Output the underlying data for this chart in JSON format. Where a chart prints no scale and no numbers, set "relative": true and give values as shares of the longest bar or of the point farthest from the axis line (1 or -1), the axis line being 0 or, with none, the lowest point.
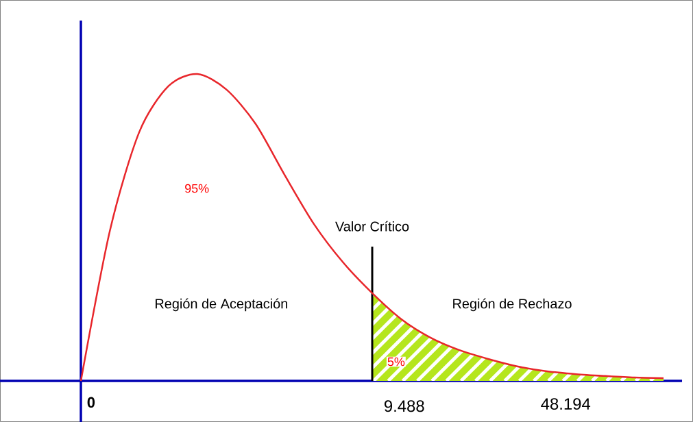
{
  "chart_data": {
    "type": "line",
    "relative": true,
    "categories": [
      null,
      null,
      null,
      null,
      null,
      null,
      null,
      null,
      null,
      null,
      null,
      null,
      null,
      null,
      null,
      null,
      null,
      null,
      null,
      null,
      null
    ],
    "annotations": [
      "95%",
      "Región de Aceptación",
      "Región de Rechazo",
      "5%",
      "0",
      "9.488",
      "48.194",
      "Valor Crítico"
    ],
    "series": [
      {
        "color": "#e8262b",
        "values": [
          0,
          0.491,
          0.81,
          0.96,
          1,
          0.949,
          0.837,
          0.67,
          0.511,
          0.386,
          0.286,
          0.201,
          0.141,
          0.1,
          0.071,
          0.047,
          0.031,
          0.022,
          0.016,
          0.011,
          0.009
        ]
      },
      {
        "type": "area",
        "color": "#b5e61d",
        "values": [
          null,
          null,
          null,
          null,
          null,
          null,
          null,
          null,
          null,
          null,
          0.286,
          0.201,
          0.141,
          0.1,
          0.071,
          0.047,
          0.031,
          0.022,
          0.016,
          0.011,
          0.009
        ]
      }
    ]
  }
}
